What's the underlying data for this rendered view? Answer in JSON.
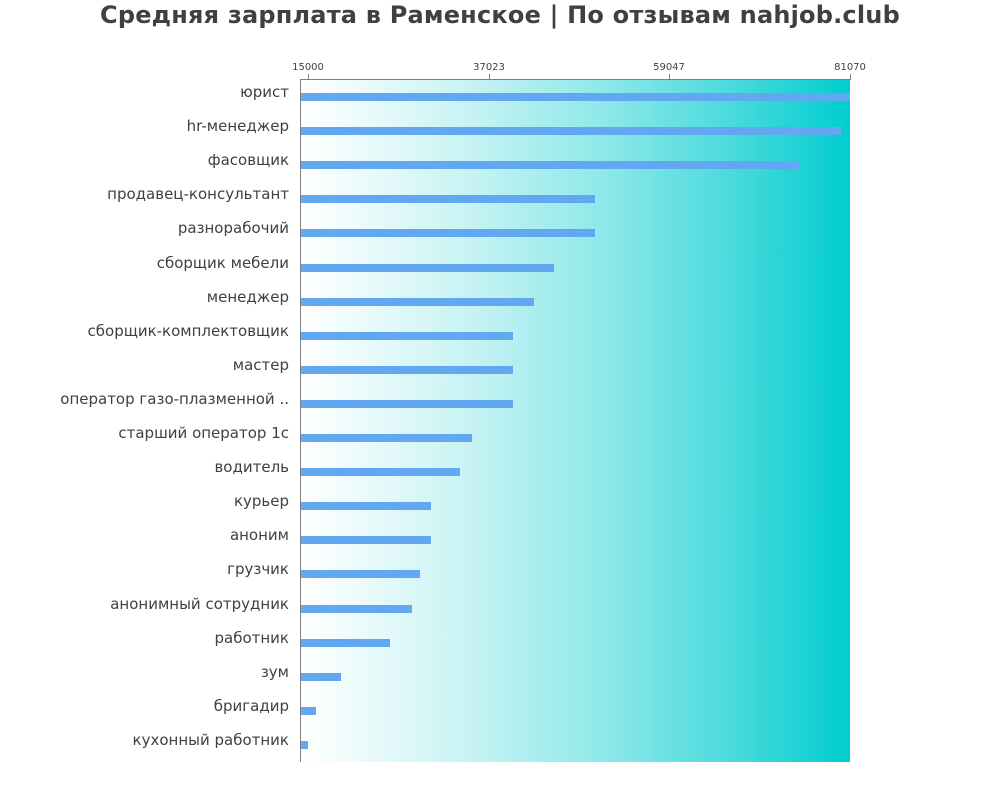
{
  "chart_data": {
    "type": "bar",
    "orientation": "horizontal",
    "title": "Средняя зарплата в Раменское | По отзывам nahjob.club",
    "xlabel": "",
    "ylabel": "",
    "xlim": [
      14024,
      81070
    ],
    "x_ticks": [
      15000,
      37023,
      59047,
      81070
    ],
    "x_tick_labels": [
      "15000",
      "37023",
      "59047",
      "81070"
    ],
    "axis_position": "top",
    "grid": false,
    "legend": null,
    "background": "horizontal gradient white → #00CED1",
    "bar_color": "#62A8F0",
    "categories": [
      "юрист",
      "hr-менеджер",
      "фасовщик",
      "продавец-консультант",
      "разнорабочий",
      "сборщик мебели",
      "менеджер",
      "сборщик-комплектовщик",
      "мастер",
      "оператор газо-плазменной ..",
      "старший оператор 1с",
      "водитель",
      "курьер",
      "аноним",
      "грузчик",
      "анонимный сотрудник",
      "работник",
      "зум",
      "бригадир",
      "кухонный работник"
    ],
    "values": [
      81070,
      80000,
      75000,
      50000,
      50000,
      45000,
      42500,
      40000,
      40000,
      40000,
      35000,
      33500,
      30000,
      30000,
      28600,
      27700,
      25000,
      19000,
      16000,
      15000
    ]
  }
}
